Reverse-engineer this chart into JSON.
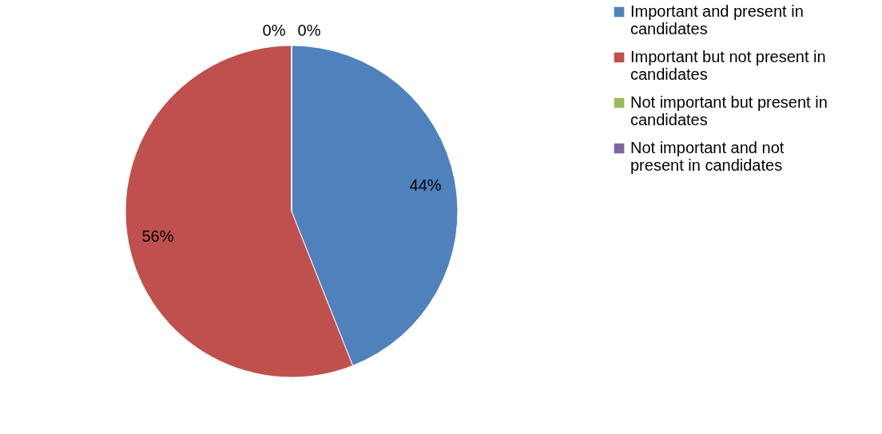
{
  "chart_data": {
    "type": "pie",
    "categories": [
      "Important and present in candidates",
      "Important but not present in candidates",
      "Not important but present in candidates",
      "Not important and not present in candidates"
    ],
    "values": [
      44,
      56,
      0,
      0
    ],
    "colors": [
      "#4f81bd",
      "#c0504d",
      "#9bbb59",
      "#8064a2"
    ],
    "value_labels": [
      "44%",
      "56%",
      "0%",
      "0%"
    ],
    "legend": "right"
  }
}
